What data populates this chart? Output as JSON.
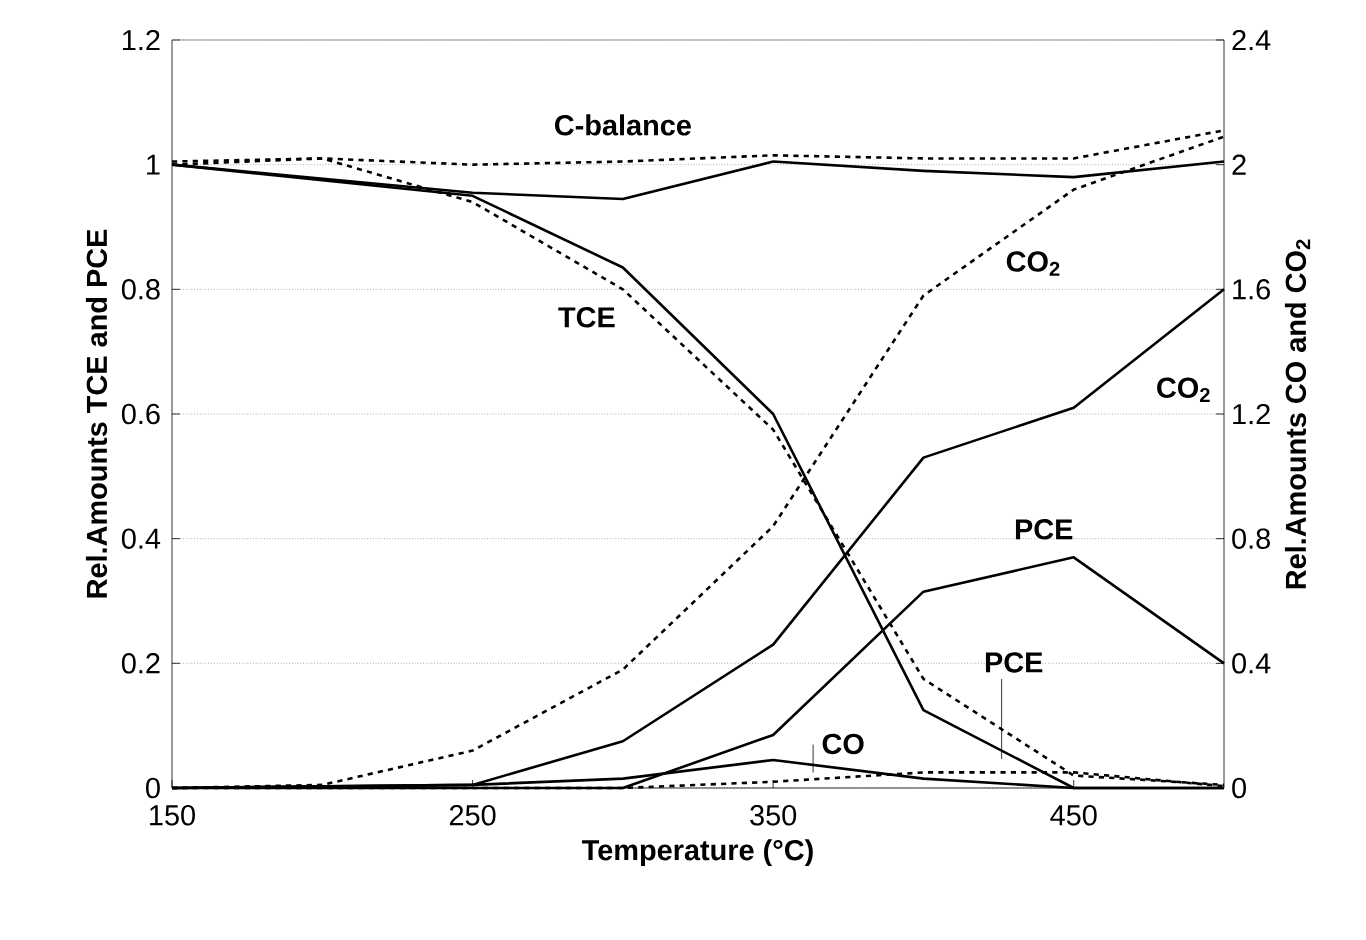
{
  "chart_data": {
    "type": "line",
    "xlabel": "Temperature (°C)",
    "ylabel": "Rel.Amounts TCE and PCE",
    "y2label": "Rel.Amounts CO and CO$_{2}$",
    "x": [
      150,
      200,
      250,
      300,
      350,
      400,
      450,
      500
    ],
    "xlim": [
      150,
      500
    ],
    "xticks": [
      150,
      250,
      350,
      450
    ],
    "ylim": [
      0,
      1.2
    ],
    "yticks": [
      0,
      0.2,
      0.4,
      0.6,
      0.8,
      1,
      1.2
    ],
    "y2lim": [
      0,
      2.4
    ],
    "y2ticks": [
      0,
      0.4,
      0.8,
      1.2,
      1.6,
      2,
      2.4
    ],
    "grid": "y",
    "series": [
      {
        "name": "C-balance",
        "color": "#000000",
        "line_style": "solid",
        "values": [
          1.0,
          null,
          0.955,
          0.945,
          1.005,
          0.99,
          0.98,
          1.005
        ]
      },
      {
        "color": "#000000",
        "line_style": "dashed",
        "values": [
          1.005,
          1.01,
          1.0,
          1.005,
          1.015,
          1.01,
          1.01,
          1.055
        ]
      },
      {
        "color": "#000000",
        "line_style": "solid",
        "values": [
          1.0,
          null,
          0.95,
          0.835,
          0.6,
          0.125,
          0.0,
          0.0
        ]
      },
      {
        "name": "TCE",
        "color": "#000000",
        "line_style": "dashed",
        "values": [
          1.0,
          1.01,
          0.94,
          0.8,
          0.575,
          0.175,
          0.02,
          0.005
        ]
      },
      {
        "name": "PCE",
        "color": "#000000",
        "line_style": "solid",
        "values": [
          0.0,
          null,
          0.0,
          0.0,
          0.085,
          0.315,
          0.37,
          0.2
        ]
      },
      {
        "name": "PCE",
        "color": "#000000",
        "line_style": "dashed",
        "values": [
          0.0,
          0.0,
          0.0,
          0.0,
          0.01,
          0.025,
          0.025,
          0.003
        ]
      },
      {
        "name": "CO$_{2}$",
        "color": "#000000",
        "line_style": "solid",
        "axis": "y2",
        "values": [
          0.0,
          null,
          0.01,
          0.15,
          0.46,
          1.06,
          1.22,
          1.6
        ]
      },
      {
        "name": "CO$_{2}$",
        "color": "#000000",
        "line_style": "dashed",
        "axis": "y2",
        "values": [
          0.0,
          0.01,
          0.12,
          0.38,
          0.84,
          1.58,
          1.92,
          2.09
        ]
      },
      {
        "name": "CO",
        "color": "#000000",
        "line_style": "solid",
        "axis": "y2",
        "values": [
          0.0,
          null,
          0.01,
          0.03,
          0.09,
          0.03,
          0.0,
          0.0
        ]
      }
    ]
  }
}
